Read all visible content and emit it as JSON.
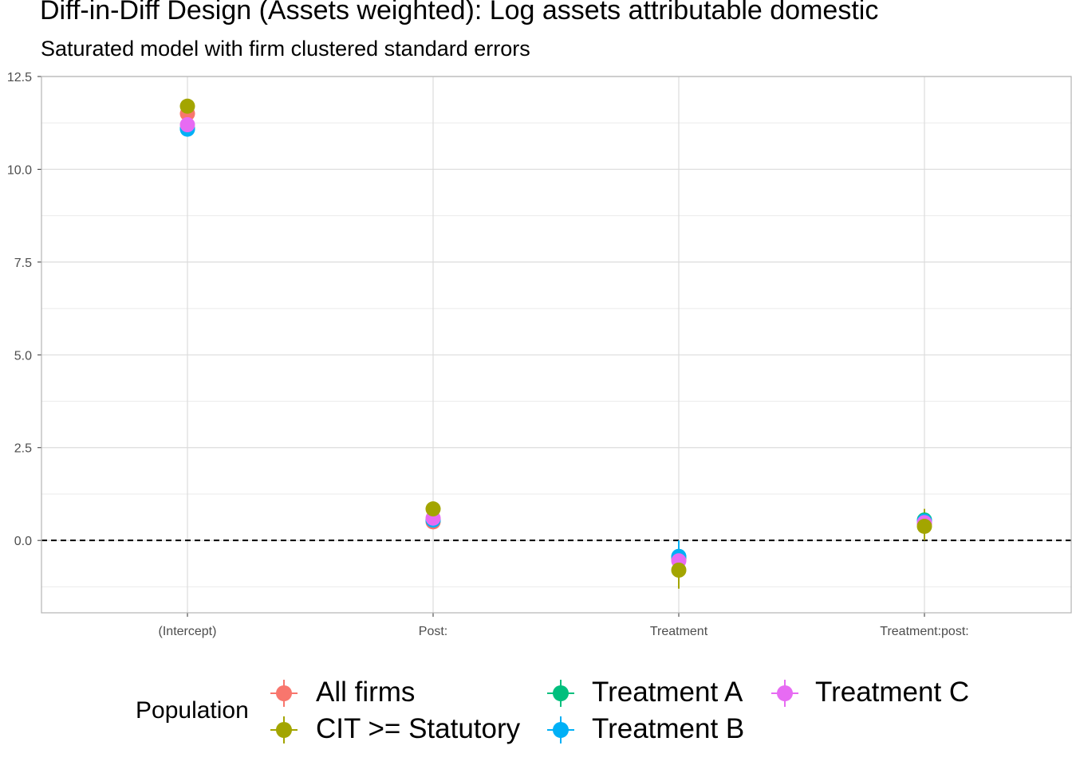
{
  "title": "Diff-in-Diff Design (Assets weighted): Log assets attributable domestic",
  "subtitle": "Saturated model with firm clustered standard errors",
  "chart_data": {
    "type": "scatter",
    "categories": [
      "(Intercept)",
      "Post:",
      "Treatment",
      "Treatment:post:"
    ],
    "ylim": [
      -1.95,
      12.5
    ],
    "yticks": [
      "0.0",
      "2.5",
      "5.0",
      "7.5",
      "10.0",
      "12.5"
    ],
    "ytick_values": [
      0,
      2.5,
      5,
      7.5,
      10,
      12.5
    ],
    "reference_line": 0,
    "grid": true,
    "legend_position": "bottom",
    "legend_title": "Population",
    "series": [
      {
        "name": "All firms",
        "color": "#F8766D",
        "values": [
          11.5,
          0.5,
          -0.5,
          0.45
        ],
        "ci": [
          [
            11.42,
            11.58
          ],
          [
            0.38,
            0.62
          ],
          [
            -0.75,
            -0.25
          ],
          [
            0.3,
            0.6
          ]
        ]
      },
      {
        "name": "CIT >= Statutory",
        "color": "#A3A500",
        "values": [
          11.7,
          0.85,
          -0.8,
          0.38
        ],
        "ci": [
          [
            11.6,
            11.8
          ],
          [
            0.7,
            1.0
          ],
          [
            -1.3,
            -0.3
          ],
          [
            0.0,
            0.85
          ]
        ]
      },
      {
        "name": "Treatment A",
        "color": "#00BF7D",
        "values": [
          11.1,
          0.55,
          -0.45,
          0.55
        ],
        "ci": [
          [
            11.02,
            11.18
          ],
          [
            0.45,
            0.65
          ],
          [
            -0.7,
            -0.2
          ],
          [
            0.4,
            0.7
          ]
        ]
      },
      {
        "name": "Treatment B",
        "color": "#00B0F6",
        "values": [
          11.08,
          0.55,
          -0.43,
          0.52
        ],
        "ci": [
          [
            11.0,
            11.16
          ],
          [
            0.45,
            0.65
          ],
          [
            -0.8,
            0.0
          ],
          [
            0.35,
            0.7
          ]
        ]
      },
      {
        "name": "Treatment C",
        "color": "#E76BF3",
        "values": [
          11.2,
          0.6,
          -0.55,
          0.48
        ],
        "ci": [
          [
            11.12,
            11.28
          ],
          [
            0.5,
            0.7
          ],
          [
            -0.75,
            -0.35
          ],
          [
            0.35,
            0.6
          ]
        ]
      }
    ]
  }
}
